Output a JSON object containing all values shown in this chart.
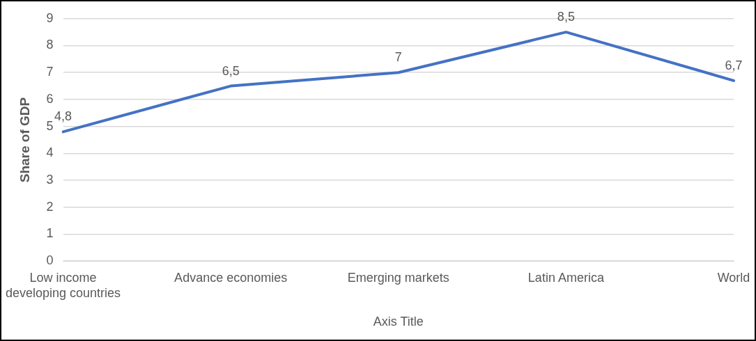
{
  "chart_data": {
    "type": "line",
    "categories": [
      "Low income\ndeveloping countries",
      "Advance economies",
      "Emerging markets",
      "Latin America",
      "World"
    ],
    "series": [
      {
        "color": "#4472c4",
        "values": [
          4.8,
          6.5,
          7,
          8.5,
          6.7
        ],
        "value_labels": [
          "4,8",
          "6,5",
          "7",
          "8,5",
          "6,7"
        ]
      }
    ],
    "ylim": [
      0,
      9
    ],
    "yticks": [
      0,
      1,
      2,
      3,
      4,
      5,
      6,
      7,
      8,
      9
    ],
    "xlabel": "Axis Title",
    "ylabel": "Share of GDP",
    "grid": "y",
    "legend": false,
    "marker": "none",
    "line_style": "solid"
  }
}
